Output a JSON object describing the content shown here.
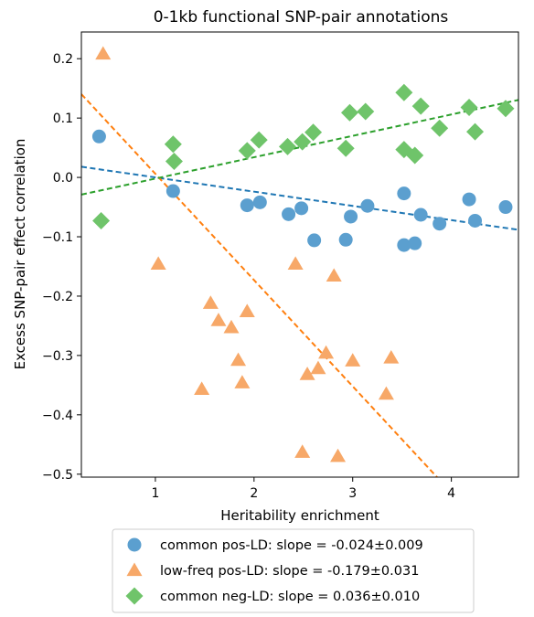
{
  "chart_data": {
    "type": "scatter",
    "title": "0-1kb functional SNP-pair annotations",
    "xlabel": "Heritability enrichment",
    "ylabel": "Excess SNP-pair effect correlation",
    "xlim": [
      0.25,
      4.68
    ],
    "ylim": [
      -0.505,
      0.245
    ],
    "xticks": [
      1,
      2,
      3,
      4
    ],
    "xtick_labels": [
      "1",
      "2",
      "3",
      "4"
    ],
    "yticks": [
      0.2,
      0.1,
      0.0,
      -0.1,
      -0.2,
      -0.3,
      -0.4,
      -0.5
    ],
    "ytick_labels": [
      "0.2",
      "0.1",
      "0.0",
      "−0.1",
      "−0.2",
      "−0.3",
      "−0.4",
      "−0.5"
    ],
    "grid": false,
    "legend_position": "bottom-outside",
    "series": [
      {
        "name": "common pos-LD: slope = -0.024±0.009",
        "marker": "circle",
        "color": "#5b9fcf",
        "line_color": "#1f77b4",
        "trend": {
          "slope": -0.024,
          "intercept": 0.024
        },
        "points": [
          [
            0.43,
            0.069
          ],
          [
            1.18,
            -0.023
          ],
          [
            1.93,
            -0.047
          ],
          [
            2.06,
            -0.042
          ],
          [
            2.35,
            -0.062
          ],
          [
            2.48,
            -0.052
          ],
          [
            2.61,
            -0.106
          ],
          [
            2.93,
            -0.105
          ],
          [
            2.98,
            -0.066
          ],
          [
            3.15,
            -0.048
          ],
          [
            3.52,
            -0.027
          ],
          [
            3.52,
            -0.114
          ],
          [
            3.63,
            -0.111
          ],
          [
            3.69,
            -0.063
          ],
          [
            3.88,
            -0.078
          ],
          [
            4.18,
            -0.037
          ],
          [
            4.24,
            -0.073
          ],
          [
            4.55,
            -0.05
          ]
        ]
      },
      {
        "name": "low-freq pos-LD: slope = -0.179±0.031",
        "marker": "triangle",
        "color": "#f7a868",
        "line_color": "#ff7f0e",
        "trend": {
          "slope": -0.179,
          "intercept": 0.185
        },
        "points": [
          [
            0.47,
            0.208
          ],
          [
            1.03,
            -0.146
          ],
          [
            1.47,
            -0.357
          ],
          [
            1.56,
            -0.212
          ],
          [
            1.64,
            -0.241
          ],
          [
            1.77,
            -0.253
          ],
          [
            1.84,
            -0.308
          ],
          [
            1.88,
            -0.346
          ],
          [
            1.93,
            -0.226
          ],
          [
            2.42,
            -0.146
          ],
          [
            2.49,
            -0.463
          ],
          [
            2.54,
            -0.332
          ],
          [
            2.65,
            -0.322
          ],
          [
            2.73,
            -0.296
          ],
          [
            2.81,
            -0.166
          ],
          [
            2.85,
            -0.47
          ],
          [
            3.0,
            -0.309
          ],
          [
            3.34,
            -0.365
          ],
          [
            3.39,
            -0.304
          ]
        ]
      },
      {
        "name": "common neg-LD: slope = 0.036±0.010",
        "marker": "diamond",
        "color": "#6fc46a",
        "line_color": "#2ca02c",
        "trend": {
          "slope": 0.036,
          "intercept": -0.038
        },
        "points": [
          [
            0.45,
            -0.073
          ],
          [
            1.18,
            0.056
          ],
          [
            1.19,
            0.027
          ],
          [
            1.93,
            0.045
          ],
          [
            2.05,
            0.063
          ],
          [
            2.34,
            0.052
          ],
          [
            2.49,
            0.06
          ],
          [
            2.6,
            0.076
          ],
          [
            2.93,
            0.049
          ],
          [
            2.97,
            0.109
          ],
          [
            3.13,
            0.111
          ],
          [
            3.52,
            0.143
          ],
          [
            3.52,
            0.047
          ],
          [
            3.63,
            0.037
          ],
          [
            3.69,
            0.12
          ],
          [
            3.88,
            0.083
          ],
          [
            4.18,
            0.118
          ],
          [
            4.24,
            0.077
          ],
          [
            4.55,
            0.116
          ]
        ]
      }
    ]
  }
}
